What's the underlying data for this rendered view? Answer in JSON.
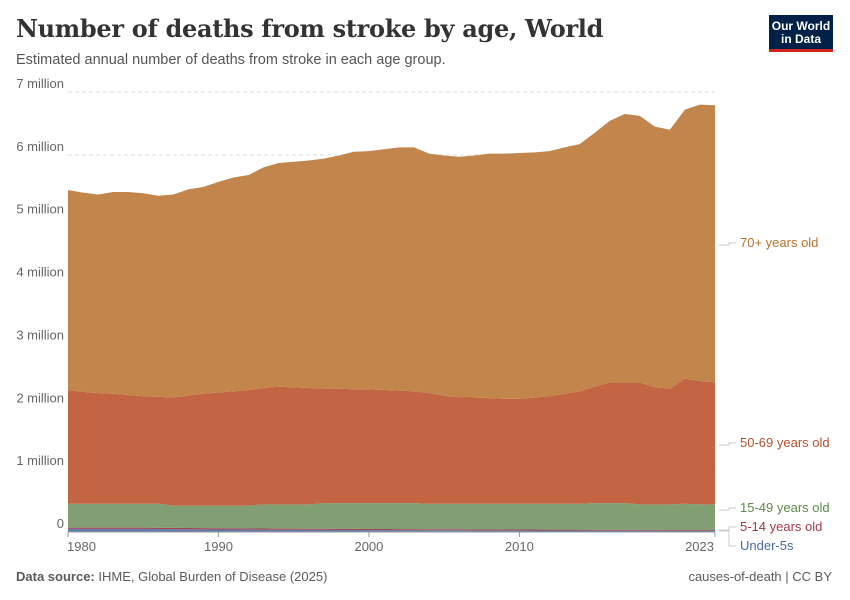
{
  "header": {
    "title": "Number of deaths from stroke by age, World",
    "subtitle": "Estimated annual number of deaths from stroke in each age group.",
    "logo_text": "Our World in Data"
  },
  "footer": {
    "source_label": "Data source:",
    "source": "IHME, Global Burden of Disease (2025)",
    "right": "causes-of-death | CC BY"
  },
  "chart_data": {
    "type": "area",
    "stacked": true,
    "title": "Number of deaths from stroke by age, World",
    "xlabel": "",
    "ylabel": "",
    "xlim": [
      1980,
      2023
    ],
    "ylim": [
      0,
      7000000
    ],
    "grid": "horizontal dashed",
    "legend": "right (inline labels)",
    "x_ticks": [
      "1980",
      "1990",
      "2000",
      "2010",
      "2023"
    ],
    "x_tick_values": [
      1980,
      1990,
      2000,
      2010,
      2023
    ],
    "y_ticks": [
      "0",
      "1 million",
      "2 million",
      "3 million",
      "4 million",
      "5 million",
      "6 million",
      "7 million"
    ],
    "y_tick_values": [
      0,
      1000000,
      2000000,
      3000000,
      4000000,
      5000000,
      6000000,
      7000000
    ],
    "x": [
      1980,
      1981,
      1982,
      1983,
      1984,
      1985,
      1986,
      1987,
      1988,
      1989,
      1990,
      1991,
      1992,
      1993,
      1994,
      1995,
      1996,
      1997,
      1998,
      1999,
      2000,
      2001,
      2002,
      2003,
      2004,
      2005,
      2006,
      2007,
      2008,
      2009,
      2010,
      2011,
      2012,
      2013,
      2014,
      2015,
      2016,
      2017,
      2018,
      2019,
      2020,
      2021,
      2022,
      2023
    ],
    "series": [
      {
        "name": "Under-5s",
        "color": "#5B76A6",
        "values": [
          50000,
          50000,
          50000,
          50000,
          50000,
          50000,
          48000,
          46000,
          44000,
          42000,
          40000,
          40000,
          38000,
          37000,
          36000,
          35000,
          34000,
          33000,
          32000,
          31000,
          30000,
          30000,
          29000,
          28000,
          28000,
          27000,
          27000,
          26000,
          26000,
          25000,
          25000,
          24000,
          24000,
          23000,
          23000,
          22000,
          22000,
          22000,
          21000,
          21000,
          20000,
          20000,
          20000,
          20000
        ]
      },
      {
        "name": "5-14 years old",
        "color": "#A03A4B",
        "values": [
          20000,
          20000,
          20000,
          20000,
          20000,
          20000,
          20000,
          20000,
          20000,
          20000,
          19000,
          19000,
          19000,
          19000,
          18000,
          18000,
          18000,
          18000,
          18000,
          18000,
          17000,
          17000,
          17000,
          17000,
          16000,
          16000,
          16000,
          16000,
          15000,
          15000,
          15000,
          15000,
          14000,
          14000,
          14000,
          14000,
          13000,
          13000,
          13000,
          13000,
          12000,
          12000,
          12000,
          12000
        ]
      },
      {
        "name": "15-49 years old",
        "color": "#7A9A6A",
        "values": [
          380000,
          380000,
          380000,
          380000,
          380000,
          380000,
          382000,
          354000,
          356000,
          358000,
          361000,
          361000,
          363000,
          384000,
          386000,
          387000,
          388000,
          409000,
          410000,
          411000,
          413000,
          413000,
          414000,
          415000,
          406000,
          407000,
          407000,
          408000,
          409000,
          410000,
          410000,
          411000,
          412000,
          413000,
          413000,
          424000,
          425000,
          425000,
          406000,
          406000,
          408000,
          418000,
          408000,
          408000
        ]
      },
      {
        "name": "50-69 years old",
        "color": "#C05D38",
        "values": [
          1810000,
          1780000,
          1760000,
          1750000,
          1730000,
          1710000,
          1700000,
          1720000,
          1750000,
          1780000,
          1800000,
          1820000,
          1840000,
          1850000,
          1870000,
          1860000,
          1850000,
          1820000,
          1820000,
          1810000,
          1810000,
          1800000,
          1790000,
          1780000,
          1760000,
          1720000,
          1690000,
          1690000,
          1680000,
          1670000,
          1670000,
          1690000,
          1710000,
          1750000,
          1790000,
          1850000,
          1920000,
          1920000,
          1940000,
          1860000,
          1840000,
          1990000,
          1960000,
          1940000
        ]
      },
      {
        "name": "70+ years old",
        "color": "#BF8042",
        "values": [
          3180000,
          3170000,
          3160000,
          3210000,
          3230000,
          3230000,
          3200000,
          3230000,
          3280000,
          3290000,
          3350000,
          3400000,
          3420000,
          3510000,
          3560000,
          3590000,
          3620000,
          3660000,
          3710000,
          3780000,
          3790000,
          3830000,
          3870000,
          3880000,
          3810000,
          3820000,
          3830000,
          3850000,
          3890000,
          3900000,
          3910000,
          3900000,
          3900000,
          3920000,
          3930000,
          4040000,
          4160000,
          4270000,
          4240000,
          4150000,
          4120000,
          4280000,
          4400000,
          4410000
        ]
      }
    ]
  }
}
